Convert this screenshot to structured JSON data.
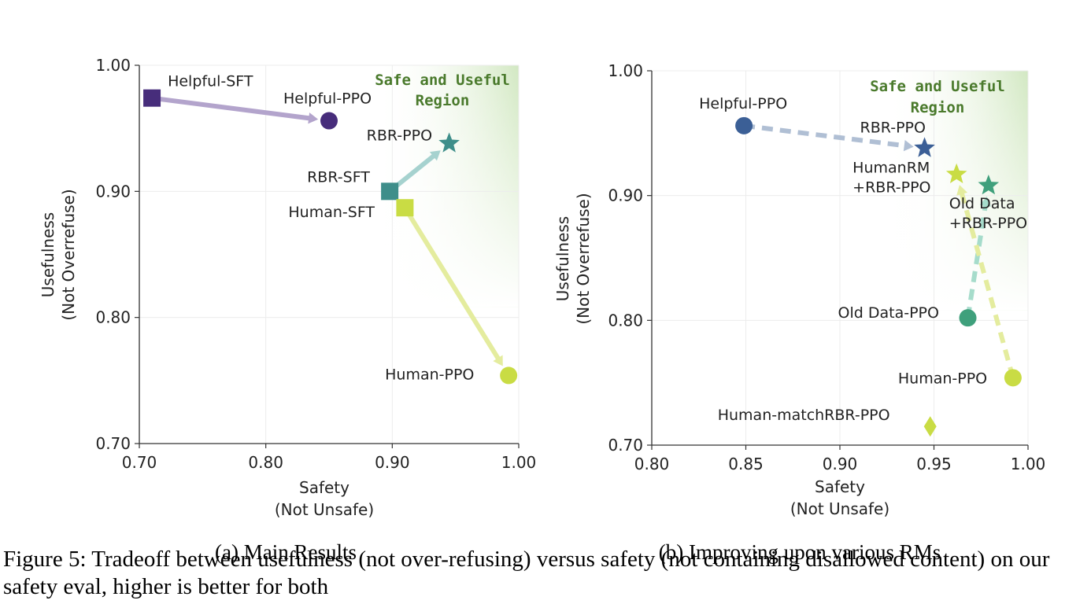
{
  "figure": {
    "caption": "Figure 5: Tradeoff between usefulness (not over-refusing) versus safety (not containing disallowed content) on our safety eval, higher is better for both"
  },
  "chart_data": [
    {
      "type": "scatter",
      "subcaption": "(a) Main Results",
      "region_label": [
        "Safe and Useful",
        "Region"
      ],
      "xlabel": [
        "Safety",
        "(Not Unsafe)"
      ],
      "ylabel": [
        "Usefulness",
        "(Not Overrefuse)"
      ],
      "xlim": [
        0.7,
        1.0
      ],
      "ylim": [
        0.7,
        1.0
      ],
      "xticks": [
        0.7,
        0.8,
        0.9,
        1.0
      ],
      "yticks": [
        0.7,
        0.8,
        0.9,
        1.0
      ],
      "xtick_labels": [
        "0.70",
        "0.80",
        "0.90",
        "1.00"
      ],
      "ytick_labels": [
        "0.70",
        "0.80",
        "0.90",
        "1.00"
      ],
      "grid": true,
      "points": [
        {
          "label": "Helpful-SFT",
          "x": 0.71,
          "y": 0.974,
          "marker": "square",
          "color": "#472d7b"
        },
        {
          "label": "Helpful-PPO",
          "x": 0.85,
          "y": 0.956,
          "marker": "circle",
          "color": "#472d7b"
        },
        {
          "label": "RBR-SFT",
          "x": 0.898,
          "y": 0.9,
          "marker": "square",
          "color": "#3e8e8a"
        },
        {
          "label": "RBR-PPO",
          "x": 0.945,
          "y": 0.938,
          "marker": "star",
          "color": "#3e8e8a"
        },
        {
          "label": "Human-SFT",
          "x": 0.91,
          "y": 0.887,
          "marker": "square",
          "color": "#c9dc44"
        },
        {
          "label": "Human-PPO",
          "x": 0.992,
          "y": 0.754,
          "marker": "circle",
          "color": "#c9dc44"
        }
      ],
      "arrows": [
        {
          "from": [
            0.71,
            0.974
          ],
          "to": [
            0.85,
            0.956
          ],
          "color": "#b3a4cc",
          "style": "solid"
        },
        {
          "from": [
            0.898,
            0.9
          ],
          "to": [
            0.945,
            0.938
          ],
          "color": "#a6d2cf",
          "style": "solid"
        },
        {
          "from": [
            0.91,
            0.887
          ],
          "to": [
            0.992,
            0.754
          ],
          "color": "#e4ec9e",
          "style": "solid"
        }
      ]
    },
    {
      "type": "scatter",
      "subcaption": "(b) Improving upon various RMs",
      "region_label": [
        "Safe and Useful",
        "Region"
      ],
      "xlabel": [
        "Safety",
        "(Not Unsafe)"
      ],
      "ylabel": [
        "Usefulness",
        "(Not Overrefuse)"
      ],
      "xlim": [
        0.8,
        1.0
      ],
      "ylim": [
        0.7,
        1.0
      ],
      "xticks": [
        0.8,
        0.85,
        0.9,
        0.95,
        1.0
      ],
      "yticks": [
        0.7,
        0.8,
        0.9,
        1.0
      ],
      "xtick_labels": [
        "0.80",
        "0.85",
        "0.90",
        "0.95",
        "1.00"
      ],
      "ytick_labels": [
        "0.70",
        "0.80",
        "0.90",
        "1.00"
      ],
      "grid": true,
      "points": [
        {
          "label": "Helpful-PPO",
          "x": 0.849,
          "y": 0.956,
          "marker": "circle",
          "color": "#3b5f96"
        },
        {
          "label": "RBR-PPO",
          "x": 0.945,
          "y": 0.938,
          "marker": "star",
          "color": "#3b5f96"
        },
        {
          "label": "HumanRM\n+RBR-PPO",
          "x": 0.962,
          "y": 0.917,
          "marker": "star",
          "color": "#c9dc44"
        },
        {
          "label": "Old Data\n+RBR-PPO",
          "x": 0.979,
          "y": 0.908,
          "marker": "star",
          "color": "#3fa07c"
        },
        {
          "label": "Old Data-PPO",
          "x": 0.968,
          "y": 0.802,
          "marker": "circle",
          "color": "#3fa07c"
        },
        {
          "label": "Human-PPO",
          "x": 0.992,
          "y": 0.754,
          "marker": "circle",
          "color": "#c9dc44"
        },
        {
          "label": "Human-matchRBR-PPO",
          "x": 0.948,
          "y": 0.715,
          "marker": "diamond",
          "color": "#c9dc44"
        }
      ],
      "arrows": [
        {
          "from": [
            0.849,
            0.956
          ],
          "to": [
            0.945,
            0.938
          ],
          "color": "#b0bfd4",
          "style": "dashed"
        },
        {
          "from": [
            0.968,
            0.802
          ],
          "to": [
            0.979,
            0.908
          ],
          "color": "#a6dccb",
          "style": "dashed"
        },
        {
          "from": [
            0.992,
            0.754
          ],
          "to": [
            0.962,
            0.917
          ],
          "color": "#e4ec9e",
          "style": "dashed"
        }
      ]
    }
  ]
}
